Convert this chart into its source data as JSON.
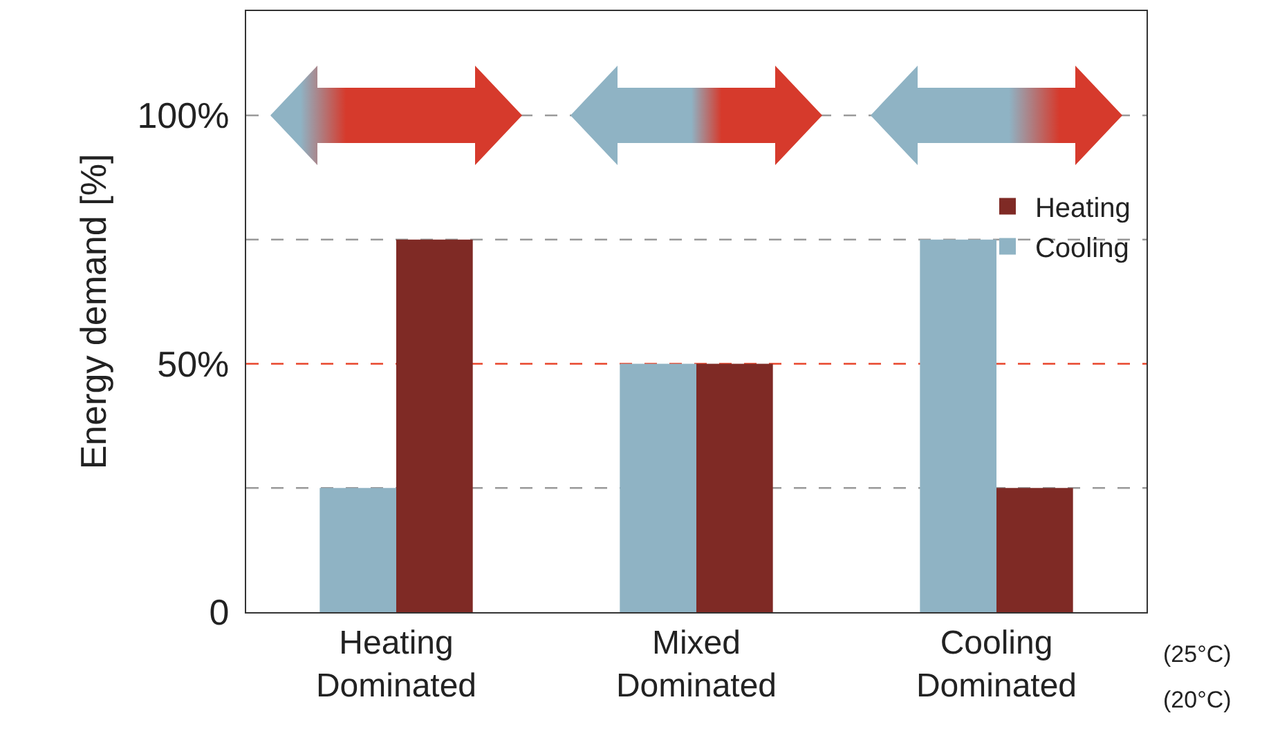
{
  "chart_data": {
    "type": "bar",
    "ylabel": "Energy demand [%]",
    "categories": [
      "Heating Dominated",
      "Mixed Dominated",
      "Cooling Dominated"
    ],
    "series": [
      {
        "name": "Cooling",
        "color": "#8fb3c4",
        "values": [
          25,
          50,
          75
        ]
      },
      {
        "name": "Heating",
        "color": "#7f2a25",
        "values": [
          75,
          50,
          25
        ]
      }
    ],
    "ylim": [
      0,
      121
    ],
    "yticks": [
      {
        "value": 0,
        "label": "0"
      },
      {
        "value": 50,
        "label": "50%"
      },
      {
        "value": 100,
        "label": "100%"
      }
    ],
    "ref_lines": [
      {
        "axis": "y",
        "value": 25,
        "color": "#999999",
        "line_style": "dashed"
      },
      {
        "axis": "y",
        "value": 50,
        "color": "#e8442a",
        "line_style": "dashed"
      },
      {
        "axis": "y",
        "value": 75,
        "color": "#999999",
        "line_style": "dashed"
      },
      {
        "axis": "y",
        "value": 100,
        "color": "#999999",
        "line_style": "dashed"
      }
    ],
    "legend": "top right",
    "annotations": [
      "(25°C)",
      "(20°C)"
    ]
  }
}
